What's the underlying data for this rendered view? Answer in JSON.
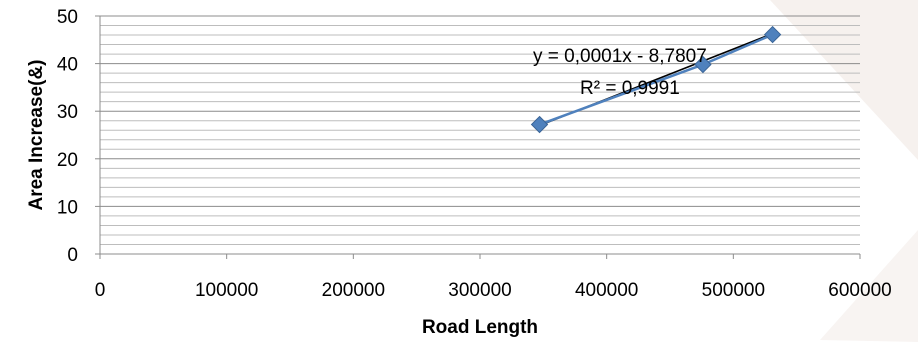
{
  "chart_data": {
    "type": "scatter",
    "xlabel": "Road Length",
    "ylabel": "Area Increase(&)",
    "xlim": [
      0,
      600000
    ],
    "ylim": [
      0,
      50
    ],
    "x_ticks": [
      "0",
      "100000",
      "200000",
      "300000",
      "400000",
      "500000",
      "600000"
    ],
    "y_ticks": [
      "0",
      "10",
      "20",
      "30",
      "40",
      "50"
    ],
    "grid": "horizontal major and minor",
    "series": [
      {
        "marker": "diamond",
        "color": "#4f81bd",
        "points": [
          {
            "x": 347000,
            "y": 27.2
          },
          {
            "x": 476000,
            "y": 39.8
          },
          {
            "x": 531000,
            "y": 46.1
          }
        ]
      }
    ],
    "trendline": {
      "type": "linear",
      "color": "#000000",
      "x_range": [
        347000,
        531000
      ],
      "y_range": [
        27.0,
        46.3
      ],
      "equation": "y = 0,0001x - 8,7807",
      "r_squared": "R² = 0,9991"
    }
  }
}
